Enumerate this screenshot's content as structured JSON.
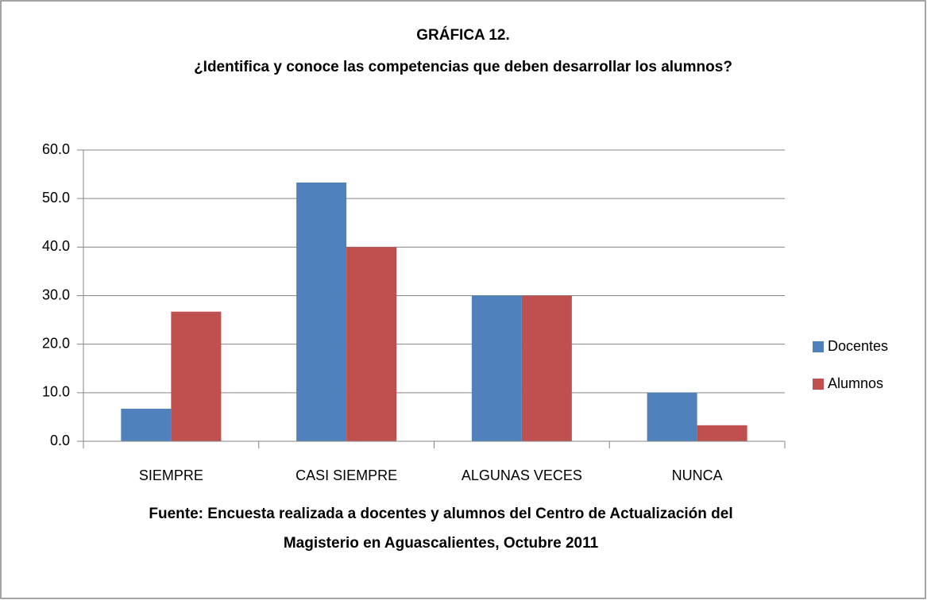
{
  "chart_data": {
    "type": "bar",
    "title": "GRÁFICA 12.",
    "subtitle": "¿Identifica  y conoce las competencias que deben desarrollar los alumnos?",
    "categories": [
      "SIEMPRE",
      "CASI SIEMPRE",
      "ALGUNAS VECES",
      "NUNCA"
    ],
    "series": [
      {
        "name": "Docentes",
        "color": "#4f81bd",
        "values": [
          6.7,
          53.3,
          30.0,
          10.0
        ]
      },
      {
        "name": "Alumnos",
        "color": "#c0504d",
        "values": [
          26.7,
          40.0,
          30.0,
          3.3
        ]
      }
    ],
    "ylim": [
      0,
      60
    ],
    "yticks": [
      {
        "value": 0,
        "label": "0.0"
      },
      {
        "value": 10,
        "label": "10.0"
      },
      {
        "value": 20,
        "label": "20.0"
      },
      {
        "value": 30,
        "label": "30.0"
      },
      {
        "value": 40,
        "label": "40.0"
      },
      {
        "value": 50,
        "label": "50.0"
      },
      {
        "value": 60,
        "label": "60.0"
      }
    ],
    "grid": true,
    "legend": "right",
    "note": [
      "Fuente: Encuesta realizada a docentes y alumnos del Centro de Actualización del",
      "Magisterio en Aguascalientes, Octubre 2011"
    ]
  }
}
